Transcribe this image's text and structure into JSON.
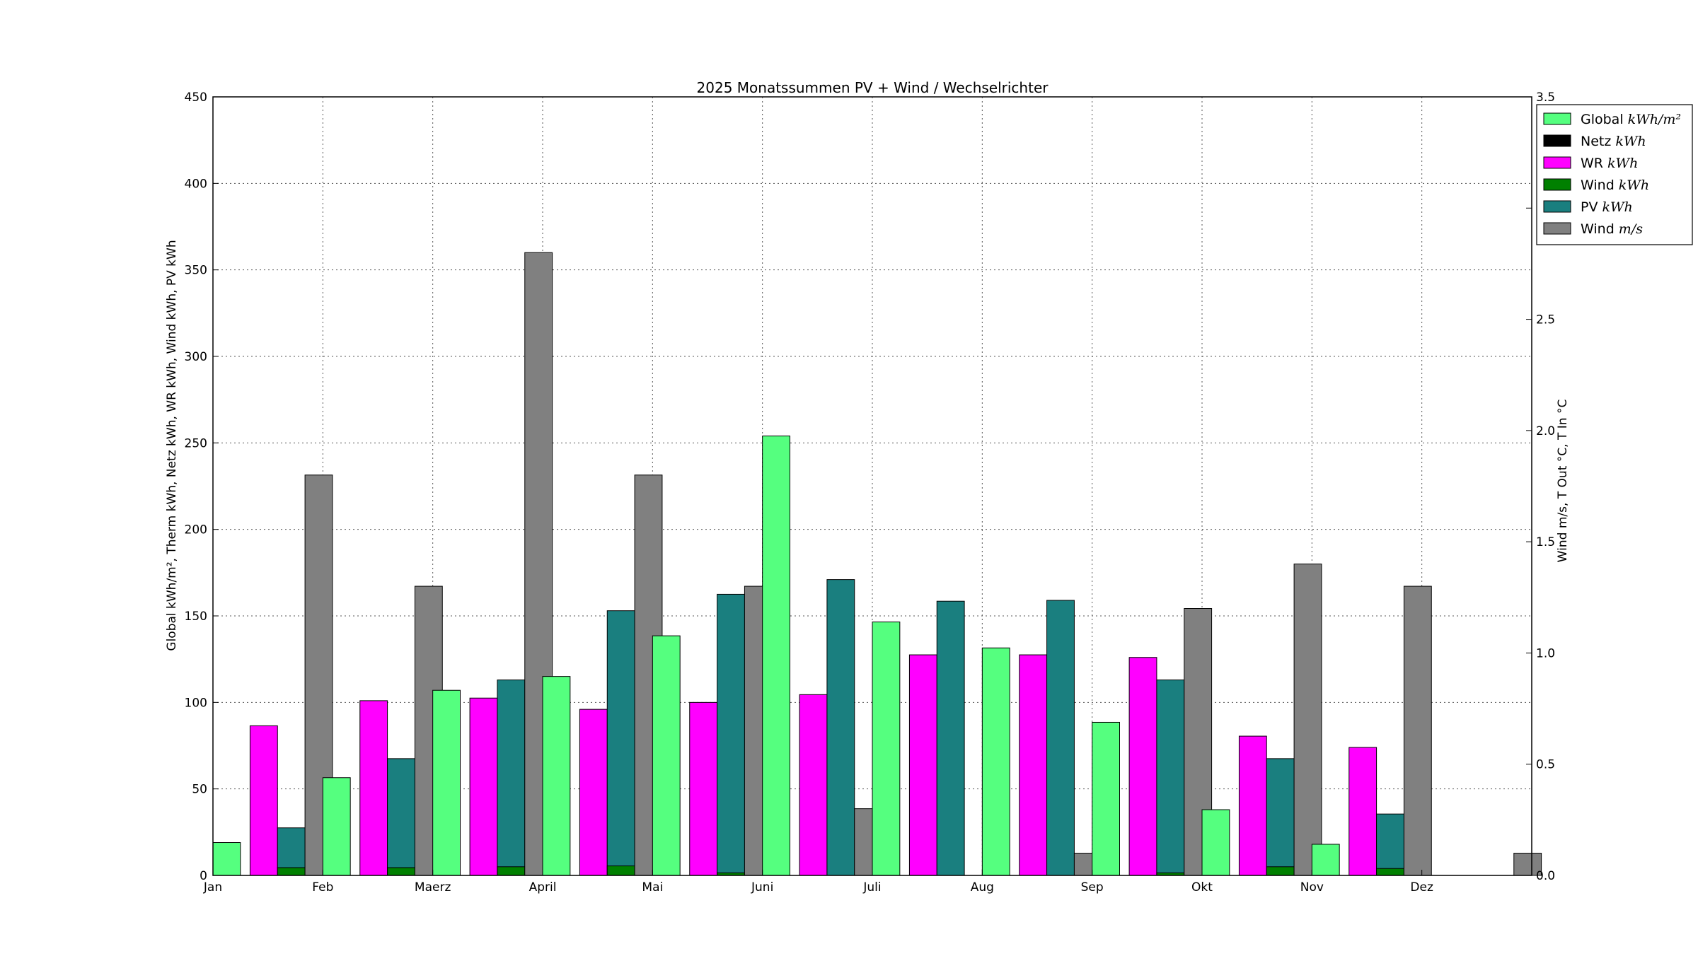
{
  "chart_data": {
    "type": "bar",
    "title": "2025 Monatssummen PV + Wind / Wechselrichter",
    "ylabel_left": "Global kWh/m², Therm kWh, Netz kWh, WR kWh, Wind kWh, PV kWh",
    "ylabel_right": "Wind m/s, T Out °C, T In °C",
    "ylim_left": [
      0,
      450
    ],
    "ylim_right": [
      0,
      3.5
    ],
    "yticks_left": [
      "0",
      "50",
      "100",
      "150",
      "200",
      "250",
      "300",
      "350",
      "400",
      "450"
    ],
    "yticks_right": [
      "0.0",
      "0.5",
      "1.0",
      "1.5",
      "2.0",
      "2.5",
      "3.0",
      "3.5"
    ],
    "grid": true,
    "legend_position": "top-right",
    "categories": [
      "Jan",
      "Feb",
      "Maerz",
      "April",
      "Mai",
      "Juni",
      "Juli",
      "Aug",
      "Sep",
      "Okt",
      "Nov",
      "Dez"
    ],
    "series": [
      {
        "name": "Global",
        "unit": "kWh/m²",
        "axis": "left",
        "color": "#55ff7f",
        "values": [
          19,
          56.5,
          107,
          115,
          138.5,
          254,
          146.5,
          131.5,
          88.5,
          38,
          18,
          0
        ]
      },
      {
        "name": "Netz",
        "unit": "kWh",
        "axis": "left",
        "color": "#000000",
        "values": [
          0,
          0,
          0,
          0,
          0,
          0,
          0,
          0,
          0,
          0,
          0,
          0
        ]
      },
      {
        "name": "WR",
        "unit": "kWh",
        "axis": "left",
        "color": "#ff00ff",
        "values": [
          86.5,
          101,
          102.5,
          96,
          100,
          104.5,
          127.5,
          127.5,
          126,
          80.5,
          74,
          0
        ]
      },
      {
        "name": "Wind",
        "unit": "kWh",
        "axis": "left",
        "color": "#008000",
        "values": [
          4.5,
          4.5,
          5,
          5.5,
          1.5,
          0,
          0,
          0,
          1.5,
          5,
          4,
          0
        ]
      },
      {
        "name": "PV",
        "unit": "kWh",
        "axis": "left",
        "color": "#1a7f7f",
        "values": [
          27.5,
          67.5,
          113,
          153,
          162.5,
          171,
          158.5,
          159,
          113,
          67.5,
          35.5,
          0
        ]
      },
      {
        "name": "Wind",
        "unit": "m/s",
        "axis": "right",
        "color": "#808080",
        "values": [
          1.8,
          1.3,
          2.8,
          1.8,
          1.3,
          0.3,
          0,
          0.1,
          1.2,
          1.4,
          1.3,
          0.1
        ]
      }
    ]
  }
}
